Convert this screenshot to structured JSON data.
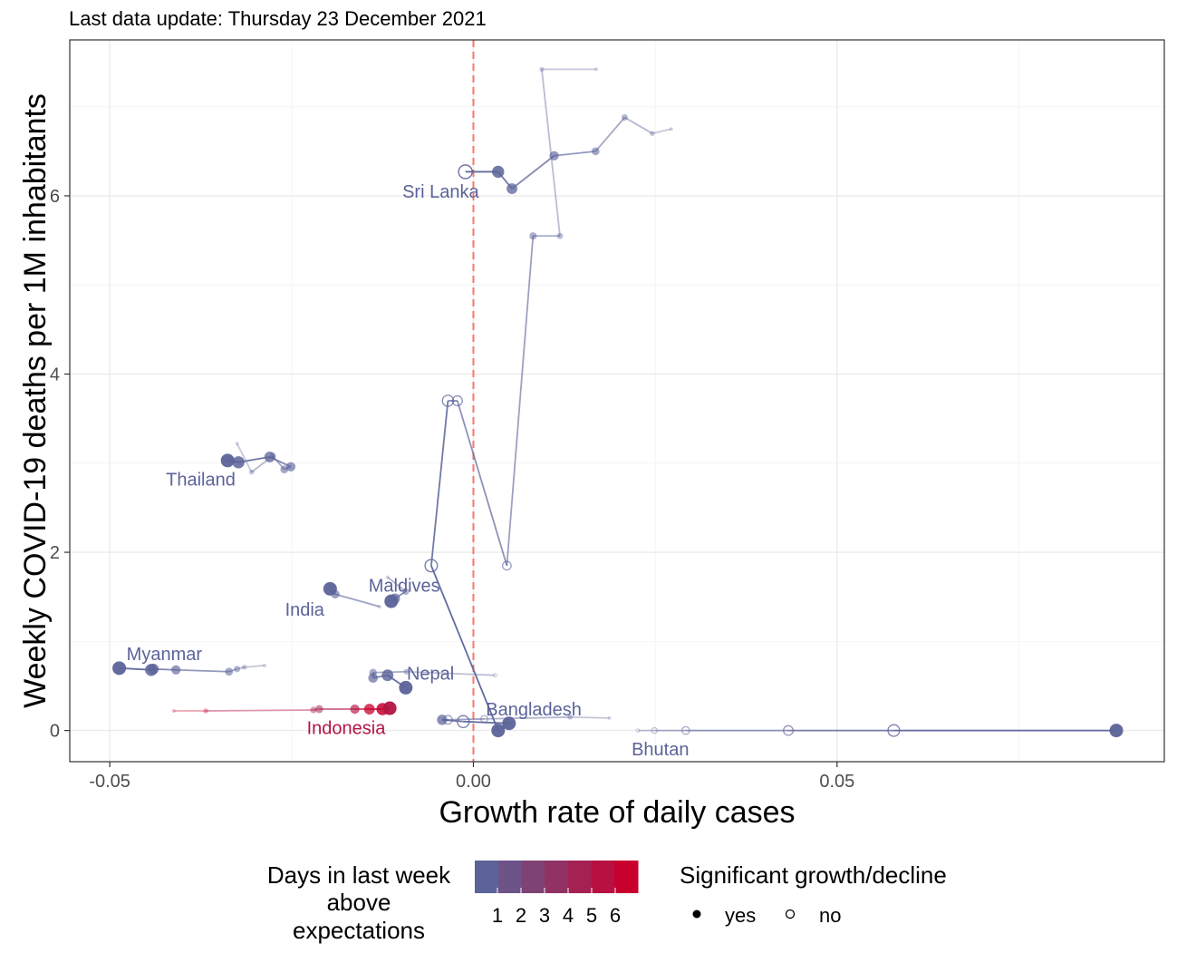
{
  "chart_data": {
    "type": "scatter",
    "subtitle": "Last data update: Thursday 23 December 2021",
    "xlabel": "Growth rate of daily cases",
    "ylabel": "Weekly COVID-19 deaths per 1M inhabitants",
    "xlim": [
      -0.0555,
      0.095
    ],
    "ylim": [
      -0.35,
      7.75
    ],
    "x_ticks": [
      -0.05,
      0.0,
      0.05
    ],
    "x_tick_labels": [
      "-0.05",
      "0.00",
      "0.05"
    ],
    "y_ticks": [
      0,
      2,
      4,
      6
    ],
    "y_tick_labels": [
      "0",
      "2",
      "4",
      "6"
    ],
    "reference_line": {
      "x": 0,
      "color": "#f8766d",
      "style": "dashed"
    },
    "grid": true,
    "colors": {
      "low": "#5b6399",
      "high": "#c8002e",
      "ref_line": "#f8766d"
    },
    "series": [
      {
        "name": "Sri Lanka",
        "label_pos": [
          -0.0045,
          6.05
        ],
        "points": [
          {
            "x": 0.0169,
            "y": 7.42,
            "sig": true,
            "days": 1
          },
          {
            "x": 0.0094,
            "y": 7.42,
            "sig": true,
            "days": 1
          },
          {
            "x": 0.0119,
            "y": 5.55,
            "sig": true,
            "days": 1
          },
          {
            "x": 0.0082,
            "y": 5.55,
            "sig": true,
            "days": 1
          },
          {
            "x": 0.0046,
            "y": 1.85,
            "sig": false,
            "days": 1
          },
          {
            "x": -0.0022,
            "y": 3.7,
            "sig": false,
            "days": 1
          },
          {
            "x": -0.0035,
            "y": 3.7,
            "sig": false,
            "days": 1
          },
          {
            "x": -0.0058,
            "y": 1.85,
            "sig": false,
            "days": 1
          },
          {
            "x": 0.0034,
            "y": 0.0,
            "sig": true,
            "days": 1
          }
        ]
      },
      {
        "name": "Sri Lanka",
        "label_pos": null,
        "points": [
          {
            "x": 0.0272,
            "y": 6.75,
            "sig": true,
            "days": 1
          },
          {
            "x": 0.0246,
            "y": 6.7,
            "sig": true,
            "days": 1
          },
          {
            "x": 0.0208,
            "y": 6.88,
            "sig": true,
            "days": 1
          },
          {
            "x": 0.0168,
            "y": 6.5,
            "sig": true,
            "days": 1
          },
          {
            "x": 0.0111,
            "y": 6.45,
            "sig": true,
            "days": 1
          },
          {
            "x": 0.0053,
            "y": 6.08,
            "sig": true,
            "days": 1
          },
          {
            "x": 0.0034,
            "y": 6.27,
            "sig": true,
            "days": 1
          },
          {
            "x": -0.0011,
            "y": 6.27,
            "sig": false,
            "days": 1
          }
        ]
      },
      {
        "name": "Thailand",
        "label_pos": [
          -0.0375,
          2.82
        ],
        "points": [
          {
            "x": -0.0325,
            "y": 3.22,
            "sig": true,
            "days": 1
          },
          {
            "x": -0.0305,
            "y": 2.9,
            "sig": true,
            "days": 1
          },
          {
            "x": -0.0276,
            "y": 3.08,
            "sig": true,
            "days": 1
          },
          {
            "x": -0.026,
            "y": 2.93,
            "sig": true,
            "days": 1
          },
          {
            "x": -0.0251,
            "y": 2.96,
            "sig": true,
            "days": 1
          },
          {
            "x": -0.028,
            "y": 3.07,
            "sig": true,
            "days": 1
          },
          {
            "x": -0.0323,
            "y": 3.01,
            "sig": true,
            "days": 1
          },
          {
            "x": -0.0338,
            "y": 3.03,
            "sig": true,
            "days": 1
          }
        ]
      },
      {
        "name": "Maldives",
        "label_pos": [
          -0.0095,
          1.63
        ],
        "points": [
          {
            "x": -0.0118,
            "y": 1.72,
            "sig": true,
            "days": 1
          },
          {
            "x": -0.0093,
            "y": 1.56,
            "sig": true,
            "days": 1
          },
          {
            "x": -0.0108,
            "y": 1.48,
            "sig": true,
            "days": 1
          },
          {
            "x": -0.0113,
            "y": 1.45,
            "sig": true,
            "days": 1
          }
        ]
      },
      {
        "name": "India",
        "label_pos": [
          -0.0232,
          1.36
        ],
        "points": [
          {
            "x": -0.0129,
            "y": 1.39,
            "sig": true,
            "days": 1
          },
          {
            "x": -0.019,
            "y": 1.53,
            "sig": true,
            "days": 1
          },
          {
            "x": -0.0197,
            "y": 1.59,
            "sig": true,
            "days": 1
          }
        ]
      },
      {
        "name": "Myanmar",
        "label_pos": [
          -0.0425,
          0.86
        ],
        "points": [
          {
            "x": -0.0287,
            "y": 0.73,
            "sig": true,
            "days": 1
          },
          {
            "x": -0.0315,
            "y": 0.71,
            "sig": true,
            "days": 1
          },
          {
            "x": -0.0325,
            "y": 0.69,
            "sig": true,
            "days": 1
          },
          {
            "x": -0.0336,
            "y": 0.66,
            "sig": true,
            "days": 1
          },
          {
            "x": -0.0409,
            "y": 0.68,
            "sig": true,
            "days": 1
          },
          {
            "x": -0.044,
            "y": 0.69,
            "sig": true,
            "days": 1
          },
          {
            "x": -0.0443,
            "y": 0.68,
            "sig": true,
            "days": 1
          },
          {
            "x": -0.0487,
            "y": 0.7,
            "sig": true,
            "days": 1
          }
        ]
      },
      {
        "name": "Nepal",
        "label_pos": [
          -0.0059,
          0.64
        ],
        "points": [
          {
            "x": 0.003,
            "y": 0.62,
            "sig": false,
            "days": 1
          },
          {
            "x": -0.0092,
            "y": 0.66,
            "sig": true,
            "days": 1
          },
          {
            "x": -0.0138,
            "y": 0.65,
            "sig": true,
            "days": 1
          },
          {
            "x": -0.0138,
            "y": 0.59,
            "sig": true,
            "days": 1
          },
          {
            "x": -0.0118,
            "y": 0.62,
            "sig": true,
            "days": 1
          },
          {
            "x": -0.0093,
            "y": 0.48,
            "sig": true,
            "days": 1
          }
        ]
      },
      {
        "name": "Indonesia",
        "label_pos": [
          -0.0175,
          0.03
        ],
        "points": [
          {
            "x": -0.0412,
            "y": 0.22,
            "sig": true,
            "days": 6
          },
          {
            "x": -0.0368,
            "y": 0.22,
            "sig": true,
            "days": 6
          },
          {
            "x": -0.022,
            "y": 0.23,
            "sig": true,
            "days": 5
          },
          {
            "x": -0.0212,
            "y": 0.24,
            "sig": true,
            "days": 4
          },
          {
            "x": -0.0163,
            "y": 0.24,
            "sig": true,
            "days": 5
          },
          {
            "x": -0.0143,
            "y": 0.24,
            "sig": true,
            "days": 6
          },
          {
            "x": -0.0125,
            "y": 0.24,
            "sig": true,
            "days": 6
          },
          {
            "x": -0.0115,
            "y": 0.25,
            "sig": true,
            "days": 5
          }
        ]
      },
      {
        "name": "Bangladesh",
        "label_pos": [
          0.0083,
          0.24
        ],
        "points": [
          {
            "x": 0.0187,
            "y": 0.14,
            "sig": true,
            "days": 1
          },
          {
            "x": 0.0133,
            "y": 0.15,
            "sig": true,
            "days": 1
          },
          {
            "x": 0.0015,
            "y": 0.13,
            "sig": false,
            "days": 1
          },
          {
            "x": -0.0035,
            "y": 0.12,
            "sig": false,
            "days": 1
          },
          {
            "x": -0.0043,
            "y": 0.12,
            "sig": true,
            "days": 1
          },
          {
            "x": -0.0014,
            "y": 0.1,
            "sig": false,
            "days": 1
          },
          {
            "x": 0.0049,
            "y": 0.08,
            "sig": true,
            "days": 1
          }
        ]
      },
      {
        "name": "Bhutan",
        "label_pos": [
          0.0257,
          -0.21
        ],
        "points": [
          {
            "x": 0.0226,
            "y": 0.0,
            "sig": false,
            "days": 1
          },
          {
            "x": 0.0249,
            "y": 0.0,
            "sig": false,
            "days": 1
          },
          {
            "x": 0.0292,
            "y": 0.0,
            "sig": false,
            "days": 1
          },
          {
            "x": 0.0433,
            "y": 0.0,
            "sig": false,
            "days": 1
          },
          {
            "x": 0.0578,
            "y": 0.0,
            "sig": false,
            "days": 1
          },
          {
            "x": 0.0884,
            "y": 0.0,
            "sig": true,
            "days": 1
          }
        ]
      }
    ],
    "legend": {
      "placement": "bottom",
      "color_title_lines": [
        "Days in last week",
        "above",
        "expectations"
      ],
      "color_ticks": [
        "1",
        "2",
        "3",
        "4",
        "5",
        "6"
      ],
      "shape_title": "Significant growth/decline",
      "shape_items": [
        {
          "label": "yes",
          "filled": true
        },
        {
          "label": "no",
          "filled": false
        }
      ]
    }
  }
}
